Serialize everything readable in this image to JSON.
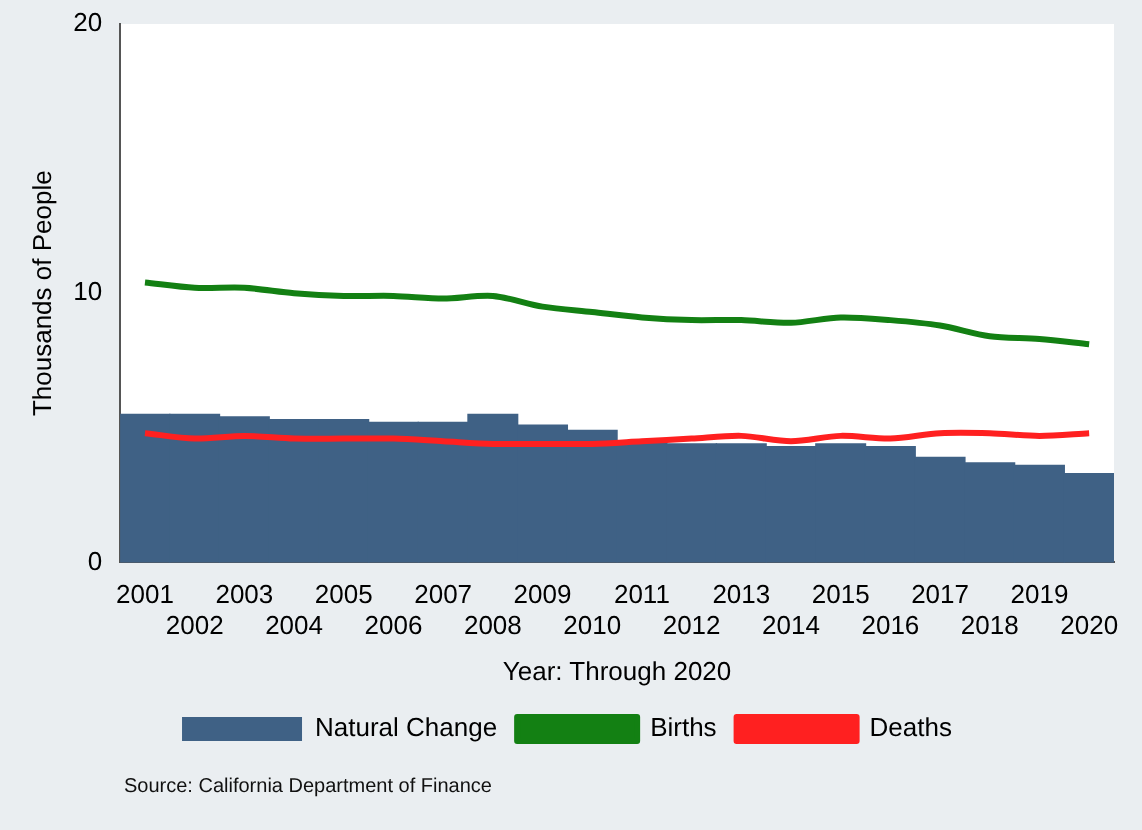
{
  "chart_data": {
    "type": "bar",
    "xlabel": "Year: Through 2020",
    "ylabel": "Thousands of People",
    "categories": [
      "2001",
      "2002",
      "2003",
      "2004",
      "2005",
      "2006",
      "2007",
      "2008",
      "2009",
      "2010",
      "2011",
      "2012",
      "2013",
      "2014",
      "2015",
      "2016",
      "2017",
      "2018",
      "2019",
      "2020"
    ],
    "series": [
      {
        "name": "Natural Change",
        "color": "#3f6185",
        "values": [
          5.5,
          5.5,
          5.4,
          5.3,
          5.3,
          5.2,
          5.2,
          5.5,
          5.1,
          4.9,
          4.5,
          4.4,
          4.4,
          4.3,
          4.4,
          4.3,
          3.9,
          3.7,
          3.6,
          3.3
        ]
      },
      {
        "name": "Births",
        "type": "line",
        "color": "#138013",
        "values": [
          10.4,
          10.2,
          10.2,
          10.0,
          9.9,
          9.9,
          9.8,
          9.9,
          9.5,
          9.3,
          9.1,
          9.0,
          9.0,
          8.9,
          9.1,
          9.0,
          8.8,
          8.4,
          8.3,
          8.1
        ]
      },
      {
        "name": "Deaths",
        "type": "line",
        "color": "#ff2020",
        "values": [
          4.8,
          4.6,
          4.7,
          4.6,
          4.6,
          4.6,
          4.5,
          4.4,
          4.4,
          4.4,
          4.5,
          4.6,
          4.7,
          4.5,
          4.7,
          4.6,
          4.8,
          4.8,
          4.7,
          4.8
        ]
      }
    ],
    "ylim": [
      0,
      20
    ],
    "yticks": [
      0,
      10,
      20
    ],
    "grid": false,
    "legend": "bottom",
    "marker": "none",
    "annotations": [
      "Source: California Department of Finance"
    ]
  }
}
